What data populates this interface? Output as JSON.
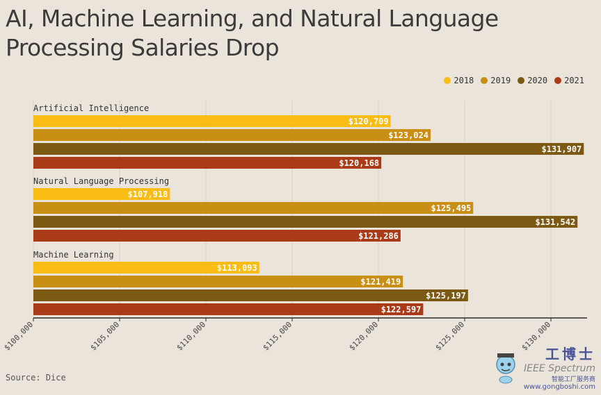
{
  "chart_data": {
    "type": "bar",
    "orientation": "horizontal",
    "title": "AI, Machine Learning, and Natural Language Processing Salaries Drop",
    "categories": [
      "Artificial Intelligence",
      "Natural Language Processing",
      "Machine Learning"
    ],
    "series": [
      {
        "name": "2018",
        "color": "#fbbc16",
        "values": [
          120709,
          107918,
          113093
        ],
        "labels": [
          "$120,709",
          "$107,918",
          "$113,093"
        ]
      },
      {
        "name": "2019",
        "color": "#c98e14",
        "values": [
          123024,
          125495,
          121419
        ],
        "labels": [
          "$123,024",
          "$125,495",
          "$121,419"
        ]
      },
      {
        "name": "2020",
        "color": "#7c5a14",
        "values": [
          131907,
          131542,
          125197
        ],
        "labels": [
          "$131,907",
          "$131,542",
          "$125,197"
        ]
      },
      {
        "name": "2021",
        "color": "#aa3b18",
        "values": [
          120168,
          121286,
          122597
        ],
        "labels": [
          "$120,168",
          "$121,286",
          "$122,597"
        ]
      }
    ],
    "xlim": [
      100000,
      132000
    ],
    "xticks": [
      100000,
      105000,
      110000,
      115000,
      120000,
      125000,
      130000
    ],
    "xtick_labels": [
      "$100,000",
      "$105,000",
      "$110,000",
      "$115,000",
      "$120,000",
      "$125,000",
      "$130,000"
    ],
    "legend_position": "top-right",
    "grid": true,
    "source": "Source: Dice"
  },
  "watermark": {
    "title": "工博士",
    "subtitle": "智能工厂服务商",
    "url": "www.gongboshi.com",
    "publisher": "IEEE Spectrum"
  }
}
